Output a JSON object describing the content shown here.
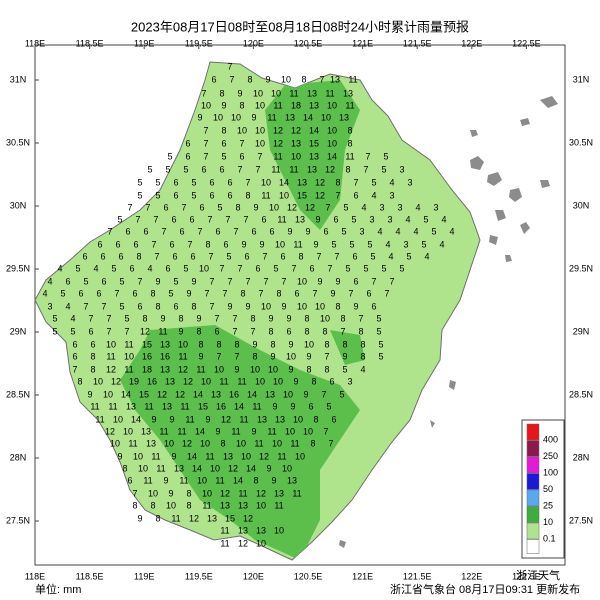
{
  "title": "2023年08月17日08时至08月18日08时24小时累计雨量预报",
  "lon_labels": [
    "118E",
    "118.5E",
    "119E",
    "119.5E",
    "120E",
    "120.5E",
    "121E",
    "121.5E",
    "122E",
    "122.5E"
  ],
  "lat_labels": [
    "31N",
    "30.5N",
    "30N",
    "29.5N",
    "29N",
    "28.5N",
    "28N",
    "27.5N"
  ],
  "legend": {
    "labels": [
      "400",
      "250",
      "100",
      "50",
      "25",
      "10",
      "0.1"
    ]
  },
  "unit": "单位: mm",
  "footer": "浙江省气象台 08月17日09:31 更新发布",
  "watermark": "浙江天气",
  "stations": [
    [
      7
    ],
    [
      6,
      7,
      8,
      9,
      10,
      8,
      7
    ],
    [
      13,
      11
    ],
    [
      7,
      8,
      9,
      10,
      10,
      11,
      13,
      11,
      13
    ],
    [
      10,
      9,
      8,
      10,
      11,
      18,
      13,
      10,
      11
    ],
    [
      9,
      10,
      10,
      9,
      11,
      13,
      14,
      10,
      13
    ],
    [
      7,
      8,
      10,
      10,
      12,
      12,
      14,
      10,
      8
    ],
    [
      6,
      7,
      6,
      7,
      10,
      12,
      13,
      15,
      10,
      8
    ],
    [
      5,
      6,
      7,
      5,
      6,
      7,
      11,
      10,
      13,
      14,
      11,
      7,
      5
    ],
    [
      5,
      5,
      5,
      6,
      6,
      7,
      7,
      11,
      11,
      13,
      12,
      8,
      7,
      5,
      3
    ],
    [
      5,
      5,
      6,
      5,
      6,
      6,
      7,
      10,
      14,
      13,
      12,
      8,
      7,
      5,
      4,
      3
    ],
    [
      5,
      5,
      6,
      5,
      6,
      6,
      8,
      11,
      10,
      15,
      12,
      7,
      6,
      4,
      3
    ],
    [
      7,
      7,
      6,
      7,
      6,
      5,
      8,
      9,
      10,
      12,
      12,
      7,
      5,
      4,
      3,
      3,
      4,
      3
    ],
    [
      5,
      7,
      7,
      6,
      6,
      7,
      7,
      7,
      6,
      11,
      13,
      9,
      6,
      5,
      3,
      3,
      4,
      5,
      4
    ],
    [
      7,
      6,
      6,
      7,
      6,
      7,
      6,
      7,
      6,
      6,
      9,
      9,
      6,
      5,
      3,
      4,
      4,
      4,
      5,
      4
    ],
    [
      6,
      6,
      6,
      7,
      6,
      7,
      8,
      6,
      9,
      9,
      10,
      11,
      9,
      5,
      5,
      5,
      4,
      3,
      5,
      4
    ],
    [
      6,
      6,
      6,
      8,
      7,
      6,
      6,
      7,
      5,
      6,
      7,
      6,
      8,
      7,
      7,
      6,
      5,
      4,
      5,
      4
    ],
    [
      4,
      5,
      4,
      5,
      6,
      4,
      6,
      5,
      10,
      7,
      7,
      6,
      5,
      7,
      6,
      7,
      5,
      5,
      5,
      5
    ],
    [
      4,
      6,
      5,
      6,
      5,
      7,
      9,
      5,
      9,
      7,
      7,
      7,
      7,
      7,
      10,
      9,
      9,
      6,
      7,
      7
    ],
    [
      4,
      5,
      6,
      6,
      7,
      6,
      8,
      5,
      9,
      7,
      7,
      8,
      7,
      8,
      6,
      7,
      9,
      7,
      6,
      7
    ],
    [
      3,
      4,
      7,
      7,
      5,
      6,
      8,
      6,
      8,
      7,
      9,
      9,
      10,
      9,
      10,
      10,
      8,
      9,
      6
    ],
    [
      5,
      4,
      7,
      7,
      5,
      8,
      9,
      8,
      9,
      7,
      7,
      8,
      9,
      9,
      8,
      10,
      8,
      7,
      5
    ],
    [
      5,
      5,
      6,
      7,
      7,
      12,
      11,
      9,
      8,
      6,
      7,
      7,
      8,
      6,
      8,
      8,
      7,
      8,
      5
    ],
    [
      6,
      6,
      10,
      11,
      15,
      13,
      10,
      8,
      8,
      8,
      9,
      8,
      9,
      10,
      8,
      8,
      8,
      5
    ],
    [
      6,
      8,
      11,
      10,
      16,
      16,
      11,
      9,
      7,
      7,
      8,
      9,
      10,
      9,
      7,
      9,
      8,
      5
    ],
    [
      7,
      8,
      12,
      11,
      18,
      13,
      12,
      11,
      10,
      9,
      10,
      10,
      9,
      8,
      8,
      5,
      4
    ],
    [
      8,
      10,
      12,
      19,
      16,
      13,
      12,
      10,
      11,
      11,
      10,
      10,
      9,
      8,
      6,
      3
    ],
    [
      9,
      10,
      14,
      15,
      12,
      12,
      14,
      13,
      16,
      14,
      13,
      10,
      9,
      7,
      5
    ],
    [
      11,
      11,
      13,
      11,
      13,
      11,
      15,
      16,
      14,
      11,
      9,
      9,
      6,
      5
    ],
    [
      11,
      10,
      14,
      9,
      9,
      11,
      9,
      12,
      11,
      13,
      13,
      10,
      8,
      6
    ],
    [
      12,
      10,
      13,
      11,
      11,
      14,
      9,
      11,
      9,
      11,
      10,
      10,
      7
    ],
    [
      10,
      11,
      13,
      10,
      12,
      10,
      8,
      10,
      11,
      10,
      11,
      8,
      7
    ],
    [
      9,
      10,
      11,
      9,
      14,
      11,
      13,
      10,
      12,
      11,
      10
    ],
    [
      8,
      10,
      11,
      13,
      14,
      10,
      12,
      14,
      9,
      10
    ],
    [
      6,
      11,
      9,
      11,
      10,
      11,
      14,
      8,
      9,
      13
    ],
    [
      7,
      10,
      9,
      8,
      10,
      12,
      11,
      12,
      13,
      11
    ],
    [
      8,
      8,
      10,
      8,
      11,
      13,
      13,
      10,
      11
    ],
    [
      9,
      8,
      11,
      12,
      13,
      15,
      12
    ],
    [
      11,
      13,
      13,
      10
    ],
    [
      11,
      12,
      10
    ]
  ]
}
